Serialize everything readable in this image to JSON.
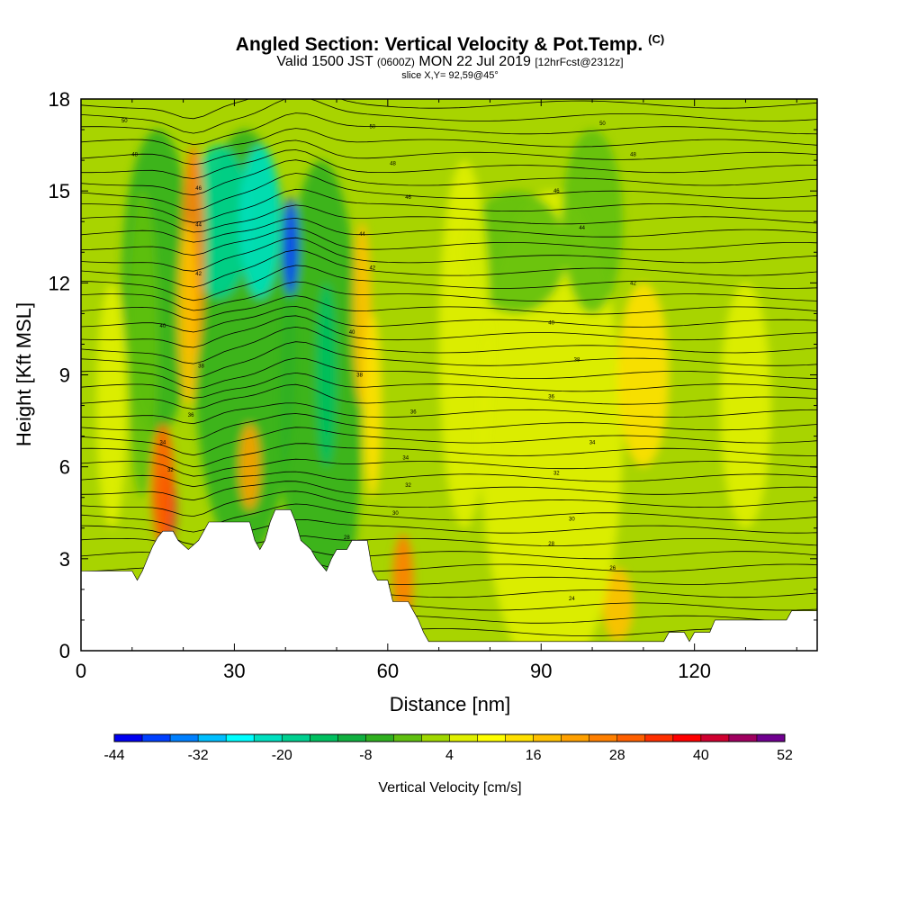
{
  "header": {
    "title": "Angled Section: Vertical Velocity & Pot.Temp.",
    "copyright": "(C)",
    "valid_prefix": "Valid 1500 JST",
    "valid_utc": "(0600Z)",
    "valid_date": "MON 22 Jul 2019",
    "forecast": "[12hrFcst@2312z]",
    "slice": "slice X,Y= 92,59@45°"
  },
  "chart_data": {
    "type": "heatmap",
    "title": "Angled Section: Vertical Velocity & Pot.Temp.",
    "xlabel": "Distance [nm]",
    "ylabel": "Height [Kft MSL]",
    "xlim": [
      0,
      144
    ],
    "ylim": [
      0,
      18
    ],
    "x_ticks": [
      "0",
      "30",
      "60",
      "90",
      "120"
    ],
    "x_tick_values": [
      0,
      30,
      60,
      90,
      120
    ],
    "y_ticks": [
      "0",
      "3",
      "6",
      "9",
      "12",
      "15",
      "18"
    ],
    "y_tick_values": [
      0,
      3,
      6,
      9,
      12,
      15,
      18
    ],
    "colorbar": {
      "label": "Vertical Velocity [cm/s]",
      "tick_labels": [
        "-44",
        "-32",
        "-20",
        "-8",
        "4",
        "16",
        "28",
        "40",
        "52"
      ],
      "tick_values": [
        -44,
        -32,
        -20,
        -8,
        4,
        16,
        28,
        40,
        52
      ],
      "levels": [
        -44,
        -40,
        -36,
        -32,
        -28,
        -24,
        -20,
        -16,
        -12,
        -8,
        -4,
        0,
        4,
        8,
        12,
        16,
        20,
        24,
        28,
        32,
        36,
        40,
        44,
        48,
        52
      ],
      "colors": [
        "#0000f0",
        "#0040ff",
        "#0080ff",
        "#00bfff",
        "#00ffff",
        "#00e0c0",
        "#00d090",
        "#00c060",
        "#10b040",
        "#30b020",
        "#60c010",
        "#a0d800",
        "#e0f000",
        "#ffff00",
        "#ffe000",
        "#ffc000",
        "#ffa000",
        "#ff8000",
        "#ff6000",
        "#ff3000",
        "#ff0000",
        "#d00030",
        "#a00060",
        "#700090"
      ]
    },
    "terrain_top_kft": [
      [
        0,
        2.6
      ],
      [
        10,
        2.6
      ],
      [
        11,
        2.3
      ],
      [
        12,
        2.6
      ],
      [
        13,
        3.0
      ],
      [
        14,
        3.4
      ],
      [
        15,
        3.7
      ],
      [
        16,
        3.9
      ],
      [
        18,
        3.9
      ],
      [
        19,
        3.6
      ],
      [
        21,
        3.3
      ],
      [
        23,
        3.6
      ],
      [
        25,
        4.2
      ],
      [
        33,
        4.2
      ],
      [
        34,
        3.6
      ],
      [
        35,
        3.3
      ],
      [
        36,
        3.6
      ],
      [
        37,
        4.2
      ],
      [
        38,
        4.6
      ],
      [
        41,
        4.6
      ],
      [
        42,
        4.2
      ],
      [
        43,
        3.6
      ],
      [
        45,
        3.3
      ],
      [
        46,
        3.0
      ],
      [
        48,
        2.6
      ],
      [
        49,
        3.0
      ],
      [
        50,
        3.3
      ],
      [
        52,
        3.3
      ],
      [
        53,
        3.6
      ],
      [
        56,
        3.6
      ],
      [
        57,
        2.6
      ],
      [
        58,
        2.3
      ],
      [
        60,
        2.3
      ],
      [
        61,
        1.6
      ],
      [
        64,
        1.6
      ],
      [
        65,
        1.3
      ],
      [
        66,
        1.0
      ],
      [
        67,
        0.6
      ],
      [
        68,
        0.3
      ],
      [
        114,
        0.3
      ],
      [
        115,
        0.6
      ],
      [
        118,
        0.6
      ],
      [
        119,
        0.3
      ],
      [
        120,
        0.6
      ],
      [
        123,
        0.6
      ],
      [
        124,
        1.0
      ],
      [
        138,
        1.0
      ],
      [
        139,
        1.3
      ],
      [
        144,
        1.3
      ]
    ],
    "theta_contour_labels": [
      {
        "x": 8.5,
        "y": 17.3,
        "t": "50"
      },
      {
        "x": 10.5,
        "y": 16.2,
        "t": "48"
      },
      {
        "x": 23,
        "y": 15.1,
        "t": "46"
      },
      {
        "x": 23,
        "y": 13.9,
        "t": "44"
      },
      {
        "x": 23,
        "y": 12.3,
        "t": "42"
      },
      {
        "x": 16,
        "y": 10.6,
        "t": "40"
      },
      {
        "x": 23.5,
        "y": 9.3,
        "t": "38"
      },
      {
        "x": 21.5,
        "y": 7.7,
        "t": "36"
      },
      {
        "x": 16,
        "y": 6.8,
        "t": "34"
      },
      {
        "x": 17.5,
        "y": 5.9,
        "t": "32"
      },
      {
        "x": 57,
        "y": 17.1,
        "t": "50"
      },
      {
        "x": 61,
        "y": 15.9,
        "t": "48"
      },
      {
        "x": 64,
        "y": 14.8,
        "t": "46"
      },
      {
        "x": 55,
        "y": 13.6,
        "t": "44"
      },
      {
        "x": 57,
        "y": 12.5,
        "t": "42"
      },
      {
        "x": 53,
        "y": 10.4,
        "t": "40"
      },
      {
        "x": 54.5,
        "y": 9.0,
        "t": "38"
      },
      {
        "x": 65,
        "y": 7.8,
        "t": "36"
      },
      {
        "x": 63.5,
        "y": 6.3,
        "t": "34"
      },
      {
        "x": 64,
        "y": 5.4,
        "t": "32"
      },
      {
        "x": 61.5,
        "y": 4.5,
        "t": "30"
      },
      {
        "x": 52,
        "y": 3.7,
        "t": "28"
      },
      {
        "x": 102,
        "y": 17.2,
        "t": "50"
      },
      {
        "x": 108,
        "y": 16.2,
        "t": "48"
      },
      {
        "x": 93,
        "y": 15.0,
        "t": "46"
      },
      {
        "x": 98,
        "y": 13.8,
        "t": "44"
      },
      {
        "x": 108,
        "y": 12.0,
        "t": "42"
      },
      {
        "x": 92,
        "y": 10.7,
        "t": "40"
      },
      {
        "x": 97,
        "y": 9.5,
        "t": "38"
      },
      {
        "x": 92,
        "y": 8.3,
        "t": "36"
      },
      {
        "x": 100,
        "y": 6.8,
        "t": "34"
      },
      {
        "x": 93,
        "y": 5.8,
        "t": "32"
      },
      {
        "x": 96,
        "y": 4.3,
        "t": "30"
      },
      {
        "x": 92,
        "y": 3.5,
        "t": "28"
      },
      {
        "x": 104,
        "y": 2.7,
        "t": "26"
      },
      {
        "x": 96,
        "y": 1.7,
        "t": "24"
      }
    ]
  }
}
